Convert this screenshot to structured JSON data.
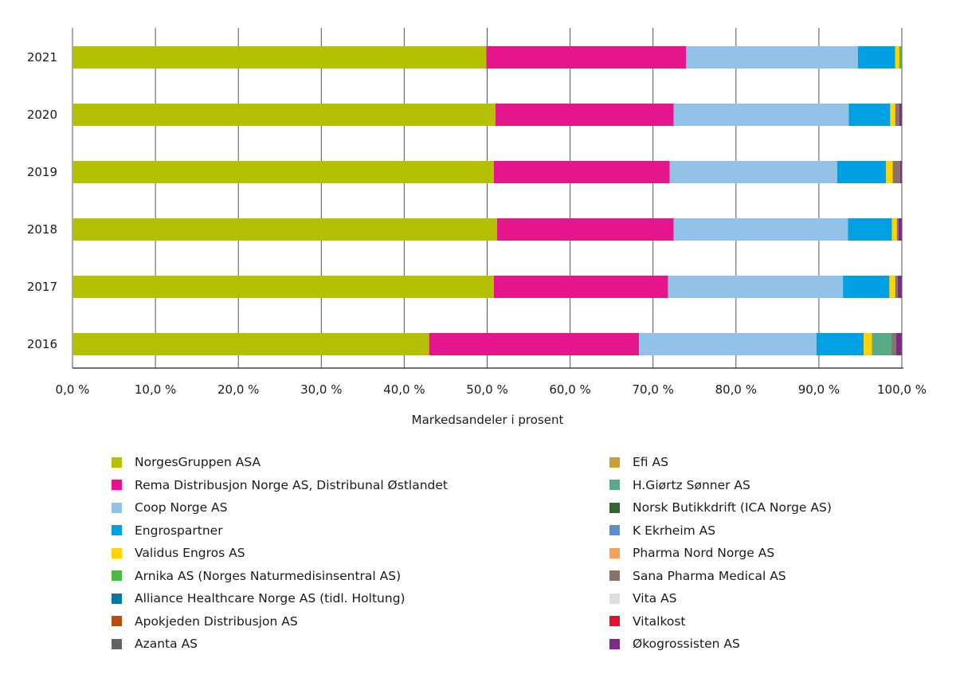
{
  "chart_data": {
    "type": "bar",
    "orientation": "horizontal",
    "stacked": true,
    "title": "",
    "xlabel": "Markedsandeler i prosent",
    "ylabel": "",
    "xlim": [
      0,
      100
    ],
    "grid": true,
    "x_ticks": [
      "0,0 %",
      "10,0 %",
      "20,0 %",
      "30,0 %",
      "40,0 %",
      "50,0 %",
      "60,0 %",
      "70,0 %",
      "80,0 %",
      "90,0 %",
      "100,0 %"
    ],
    "categories": [
      "2021",
      "2020",
      "2019",
      "2018",
      "2017",
      "2016"
    ],
    "series": [
      {
        "name": "NorgesGruppen ASA",
        "color": "#b5c000",
        "values": [
          49.9,
          51.0,
          50.8,
          51.2,
          50.8,
          43.0
        ]
      },
      {
        "name": "Rema Distribusjon Norge AS, Distribunal Østlandet",
        "color": "#e5168b",
        "values": [
          24.1,
          21.5,
          21.2,
          21.3,
          21.0,
          25.3
        ]
      },
      {
        "name": "Coop Norge AS",
        "color": "#93c2e8",
        "values": [
          20.7,
          21.1,
          20.2,
          21.0,
          21.1,
          21.4
        ]
      },
      {
        "name": "Engrospartner",
        "color": "#00a0e3",
        "values": [
          4.5,
          5.0,
          5.9,
          5.3,
          5.6,
          5.7
        ]
      },
      {
        "name": "Validus Engros AS",
        "color": "#ffd400",
        "values": [
          0.5,
          0.6,
          0.8,
          0.6,
          0.7,
          1.0
        ]
      },
      {
        "name": "Arnika AS (Norges Naturmedisinsentral AS)",
        "color": "#4db848",
        "values": [
          0.3,
          0,
          0,
          0,
          0,
          0
        ]
      },
      {
        "name": "Alliance Healthcare Norge AS (tidl. Holtung)",
        "color": "#007aa5",
        "values": [
          0,
          0,
          0,
          0,
          0,
          0
        ]
      },
      {
        "name": "Apokjeden Distribusjon AS",
        "color": "#b84c0e",
        "values": [
          0,
          0,
          0,
          0,
          0,
          0
        ]
      },
      {
        "name": "Azanta AS",
        "color": "#636363",
        "values": [
          0,
          0,
          0,
          0,
          0,
          0
        ]
      },
      {
        "name": "Efi AS",
        "color": "#c8a038",
        "values": [
          0,
          0,
          0,
          0,
          0,
          0
        ]
      },
      {
        "name": "H.Giørtz Sønner AS",
        "color": "#5aaa87",
        "values": [
          0,
          0,
          0,
          0,
          0,
          2.4
        ]
      },
      {
        "name": "Norsk Butikkdrift (ICA Norge AS)",
        "color": "#2d6a2a",
        "values": [
          0,
          0,
          0,
          0,
          0,
          0
        ]
      },
      {
        "name": "K Ekrheim AS",
        "color": "#5b8fd0",
        "values": [
          0,
          0,
          0,
          0,
          0,
          0
        ]
      },
      {
        "name": "Pharma Nord Norge AS",
        "color": "#f7a05a",
        "values": [
          0,
          0,
          0,
          0,
          0,
          0
        ]
      },
      {
        "name": "Sana Pharma Medical AS",
        "color": "#8b7266",
        "values": [
          0,
          0.5,
          0.9,
          0.2,
          0.3,
          0.5
        ]
      },
      {
        "name": "Vita AS",
        "color": "#e2dcd7",
        "values": [
          0,
          0,
          0,
          0,
          0,
          0
        ]
      },
      {
        "name": "Vitalkost",
        "color": "#e8112d",
        "values": [
          0,
          0,
          0,
          0,
          0,
          0
        ]
      },
      {
        "name": "Økogrossisten AS",
        "color": "#7d2a8c",
        "values": [
          0,
          0.3,
          0.2,
          0.4,
          0.5,
          0.7
        ]
      }
    ]
  },
  "legend": {
    "left": [
      {
        "label": "NorgesGruppen ASA",
        "color": "#b5c000"
      },
      {
        "label": "Rema Distribusjon Norge AS, Distribunal Østlandet",
        "color": "#e5168b"
      },
      {
        "label": "Coop Norge AS",
        "color": "#93c2e8"
      },
      {
        "label": "Engrospartner",
        "color": "#00a0e3"
      },
      {
        "label": "Validus Engros AS",
        "color": "#ffd400"
      },
      {
        "label": "Arnika AS (Norges Naturmedisinsentral AS)",
        "color": "#4db848"
      },
      {
        "label": "Alliance Healthcare Norge AS (tidl. Holtung)",
        "color": "#007aa5"
      },
      {
        "label": "Apokjeden Distribusjon AS",
        "color": "#b84c0e"
      },
      {
        "label": "Azanta AS",
        "color": "#636363"
      }
    ],
    "right": [
      {
        "label": "Efi AS",
        "color": "#c8a038"
      },
      {
        "label": "H.Giørtz Sønner AS",
        "color": "#5aaa87"
      },
      {
        "label": "Norsk Butikkdrift (ICA Norge AS)",
        "color": "#2d6a2a"
      },
      {
        "label": "K Ekrheim AS",
        "color": "#5b8fd0"
      },
      {
        "label": "Pharma Nord Norge AS",
        "color": "#f7a05a"
      },
      {
        "label": "Sana Pharma Medical AS",
        "color": "#8b7266"
      },
      {
        "label": "Vita AS",
        "color": "#e2dcd7"
      },
      {
        "label": "Vitalkost",
        "color": "#e8112d"
      },
      {
        "label": "Økogrossisten AS",
        "color": "#7d2a8c"
      }
    ]
  }
}
